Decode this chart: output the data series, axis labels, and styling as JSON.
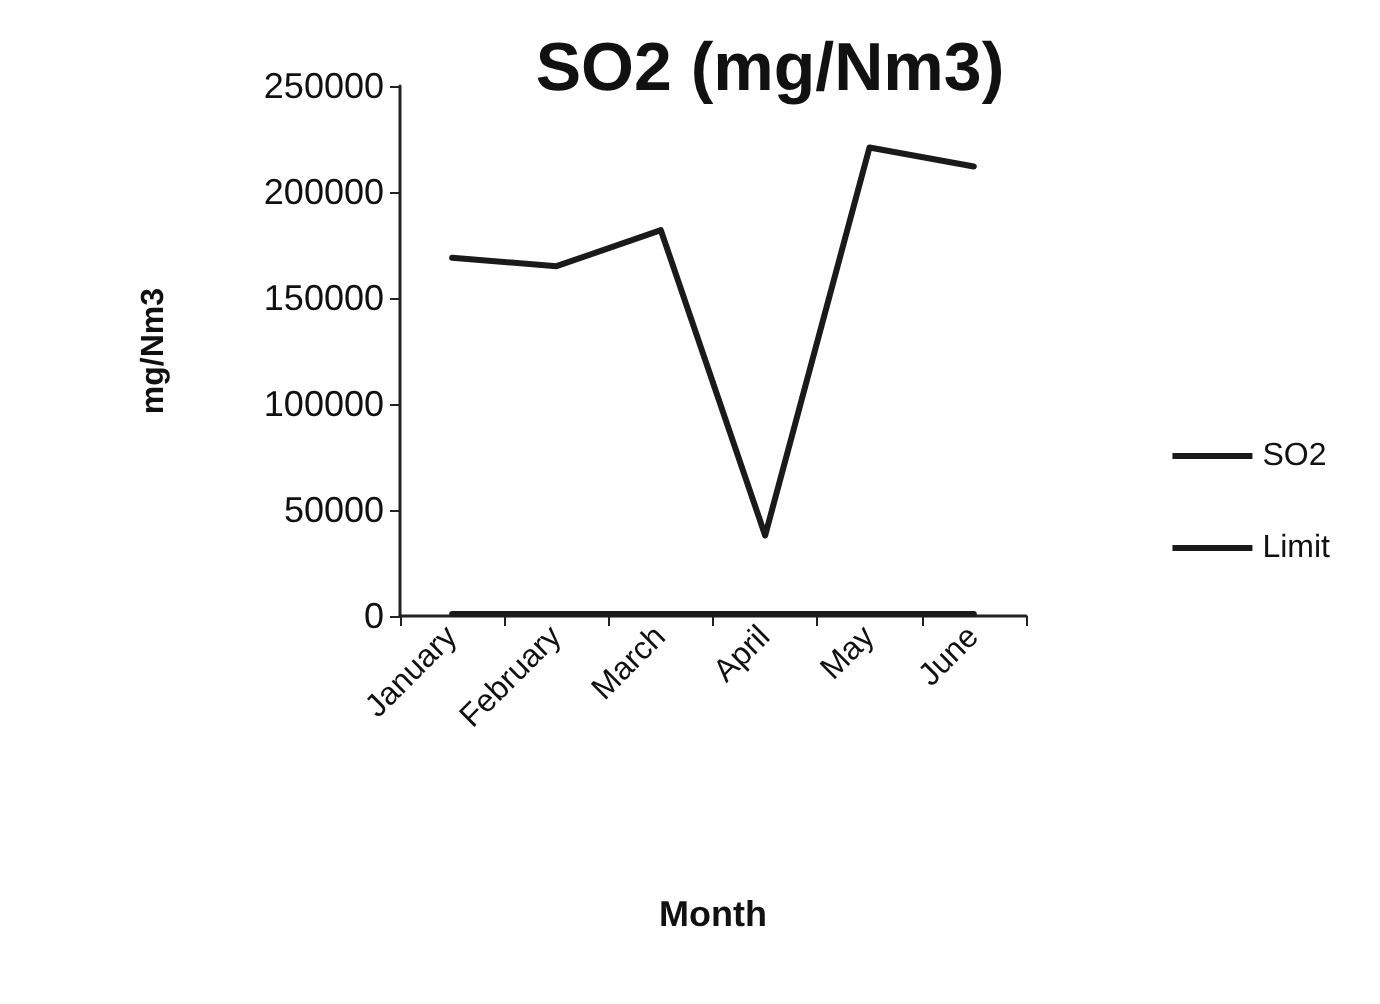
{
  "chart_data": {
    "type": "line",
    "title": "SO2 (mg/Nm3)",
    "xlabel": "Month",
    "ylabel": "mg/Nm3",
    "categories": [
      "January",
      "February",
      "March",
      "April",
      "May",
      "June"
    ],
    "series": [
      {
        "name": "SO2",
        "color": "#1a1a1a",
        "values": [
          169000,
          165000,
          182000,
          38000,
          221000,
          212000
        ]
      },
      {
        "name": "Limit",
        "color": "#1a1a1a",
        "values": [
          1000,
          1000,
          1000,
          1000,
          1000,
          1000
        ]
      }
    ],
    "ylim": [
      0,
      250000
    ],
    "yticks": [
      0,
      50000,
      100000,
      150000,
      200000,
      250000
    ],
    "grid": false,
    "legend": "right",
    "marker": "none",
    "line_style": "solid"
  }
}
